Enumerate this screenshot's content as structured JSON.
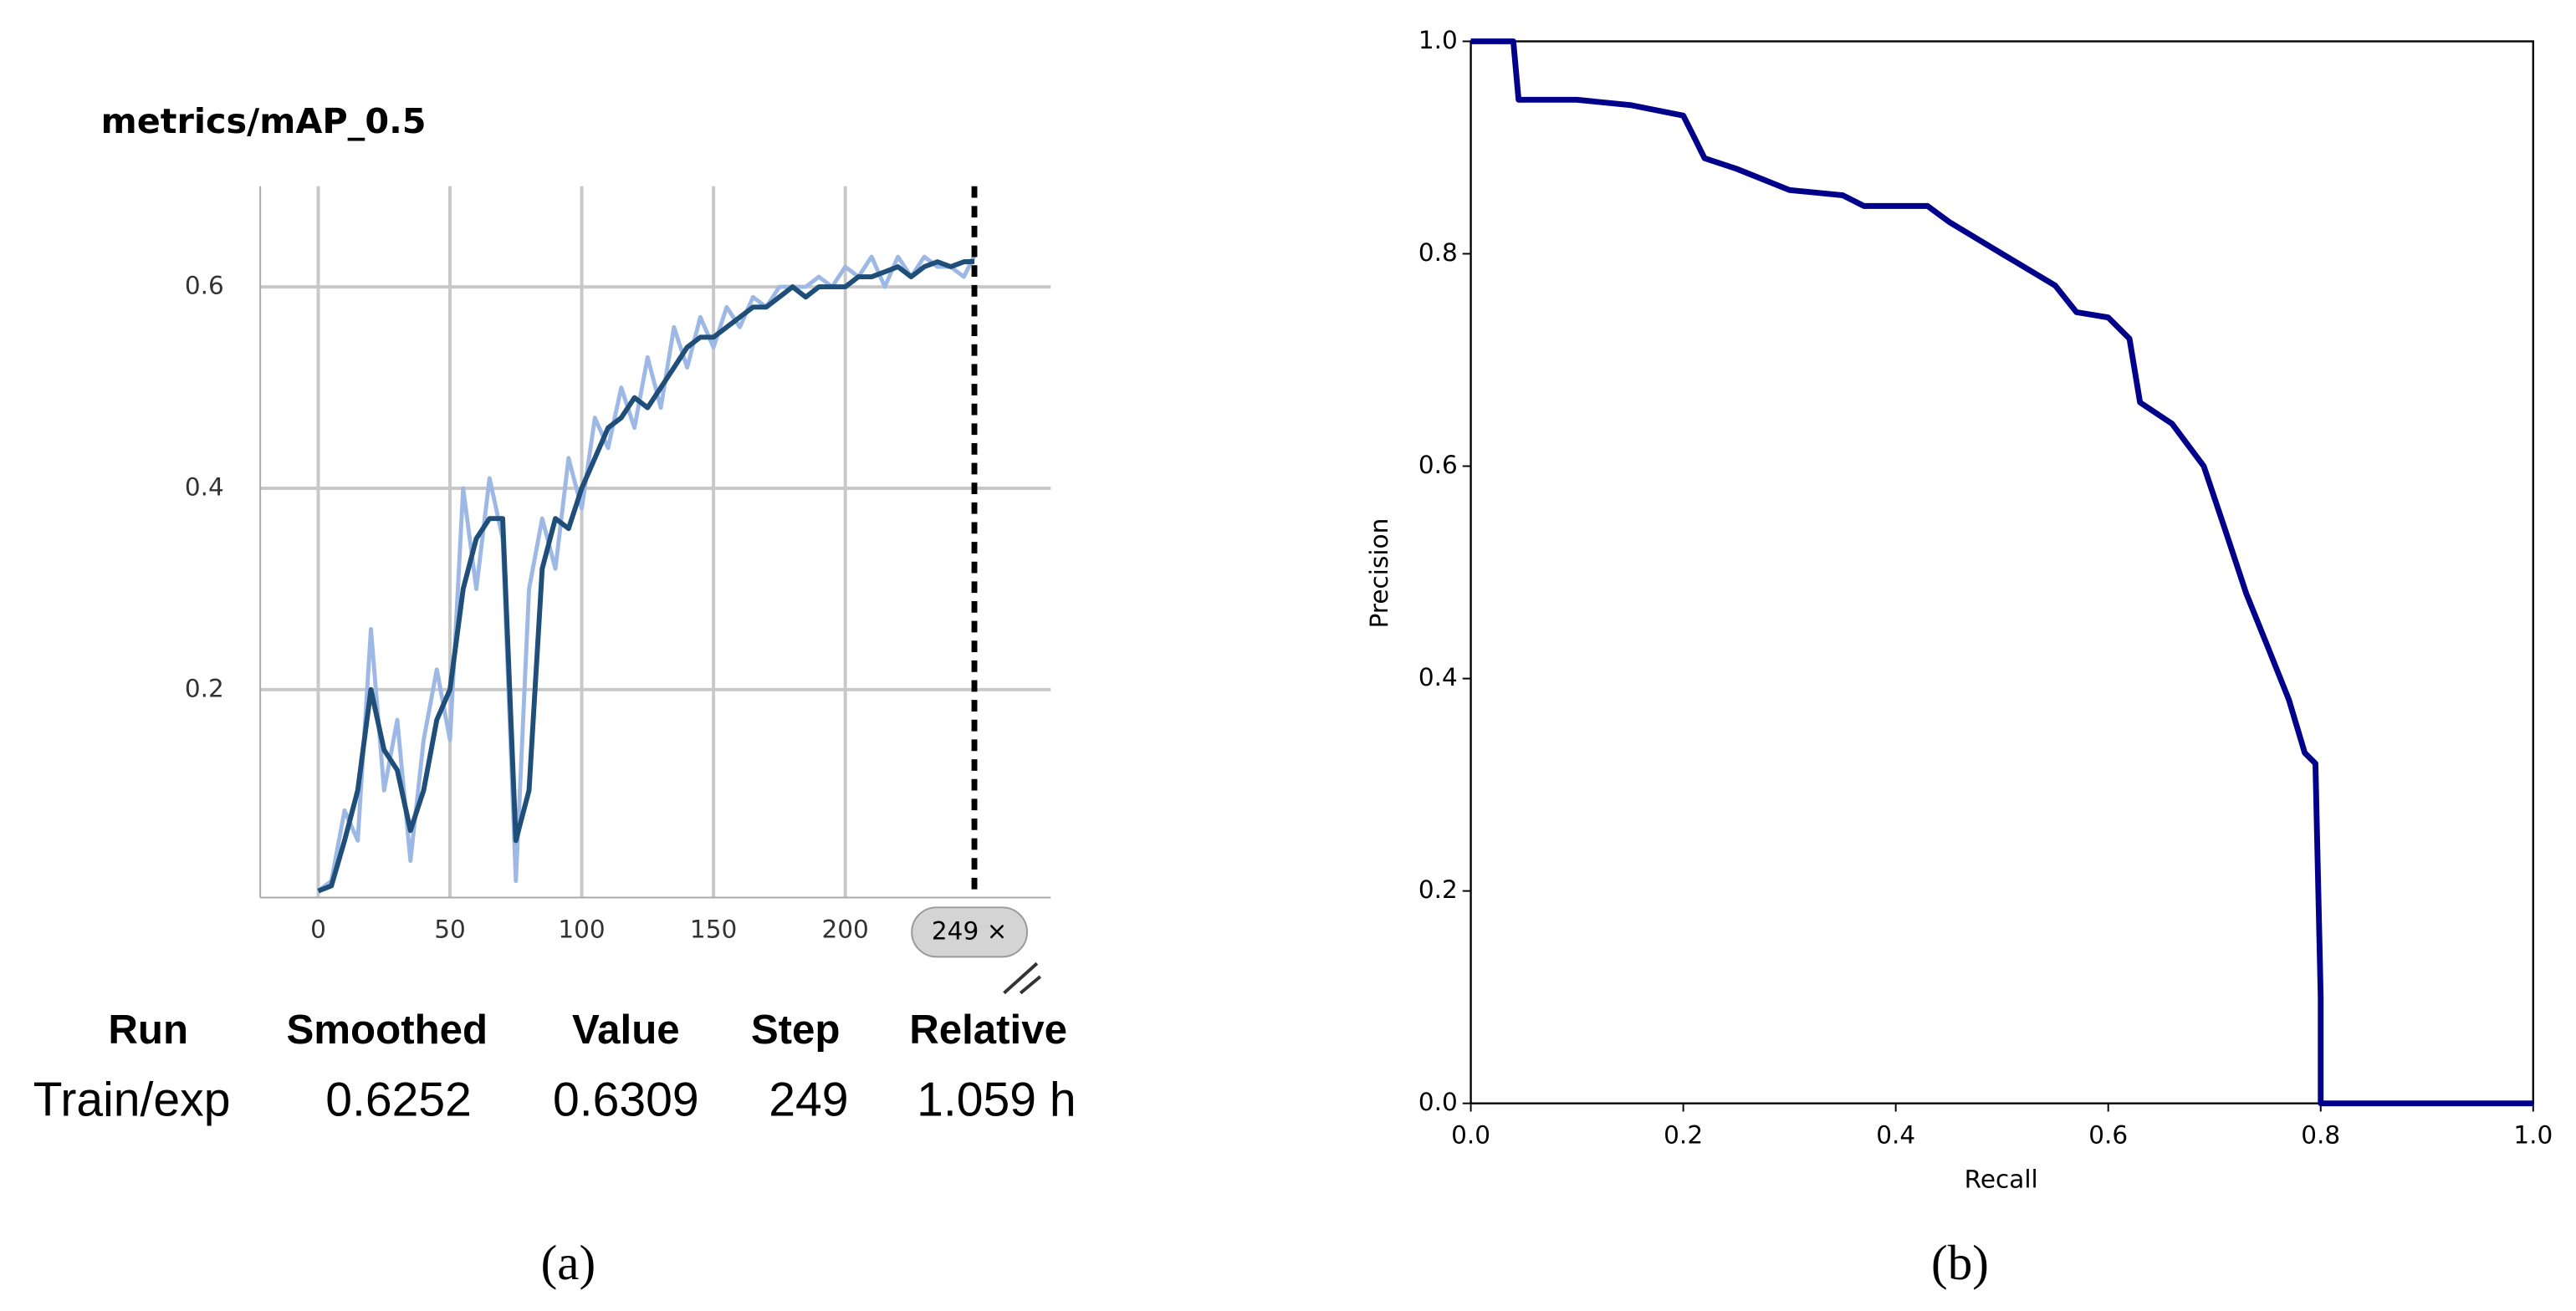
{
  "chart_data": [
    {
      "type": "line",
      "title": "metrics/mAP_0.5",
      "caption": "(a)",
      "x": [
        0,
        5,
        10,
        15,
        20,
        25,
        30,
        35,
        40,
        45,
        50,
        55,
        60,
        65,
        70,
        75,
        80,
        85,
        90,
        95,
        100,
        105,
        110,
        115,
        120,
        125,
        130,
        135,
        140,
        145,
        150,
        155,
        160,
        165,
        170,
        175,
        180,
        185,
        190,
        195,
        200,
        205,
        210,
        215,
        220,
        225,
        230,
        235,
        240,
        245,
        249
      ],
      "series": [
        {
          "color": "#9db8e4",
          "values": [
            0,
            0.01,
            0.08,
            0.05,
            0.26,
            0.1,
            0.17,
            0.03,
            0.15,
            0.22,
            0.15,
            0.4,
            0.3,
            0.41,
            0.35,
            0.01,
            0.3,
            0.37,
            0.32,
            0.43,
            0.38,
            0.47,
            0.44,
            0.5,
            0.46,
            0.53,
            0.48,
            0.56,
            0.52,
            0.57,
            0.54,
            0.58,
            0.56,
            0.59,
            0.58,
            0.6,
            0.6,
            0.6,
            0.61,
            0.6,
            0.62,
            0.61,
            0.63,
            0.6,
            0.63,
            0.61,
            0.63,
            0.62,
            0.62,
            0.61,
            0.6309
          ]
        },
        {
          "color": "#1f4e79",
          "values": [
            0,
            0.005,
            0.05,
            0.1,
            0.2,
            0.14,
            0.12,
            0.06,
            0.1,
            0.17,
            0.2,
            0.3,
            0.35,
            0.37,
            0.37,
            0.05,
            0.1,
            0.32,
            0.37,
            0.36,
            0.4,
            0.43,
            0.46,
            0.47,
            0.49,
            0.48,
            0.5,
            0.52,
            0.54,
            0.55,
            0.55,
            0.56,
            0.57,
            0.58,
            0.58,
            0.59,
            0.6,
            0.59,
            0.6,
            0.6,
            0.6,
            0.61,
            0.61,
            0.615,
            0.62,
            0.61,
            0.62,
            0.625,
            0.62,
            0.625,
            0.6252
          ]
        }
      ],
      "xlim": [
        -22,
        278
      ],
      "ylim": [
        0,
        0.7
      ],
      "xticks": [
        0,
        50,
        100,
        150,
        200
      ],
      "yticks": [
        0.2,
        0.4,
        0.6
      ],
      "grid": true,
      "cursor": {
        "value": 249,
        "label": "249 ×"
      },
      "table": {
        "header": [
          "Run",
          "Smoothed",
          "Value",
          "Step",
          "Relative"
        ],
        "row": [
          "Train/exp",
          "0.6252",
          "0.6309",
          "249",
          "1.059 h"
        ]
      }
    },
    {
      "type": "line",
      "caption": "(b)",
      "xlabel": "Recall",
      "ylabel": "Precision",
      "x": [
        0,
        0.04,
        0.045,
        0.1,
        0.15,
        0.2,
        0.21,
        0.22,
        0.25,
        0.3,
        0.35,
        0.37,
        0.43,
        0.45,
        0.5,
        0.55,
        0.57,
        0.6,
        0.62,
        0.63,
        0.66,
        0.69,
        0.71,
        0.73,
        0.75,
        0.77,
        0.785,
        0.795,
        0.8,
        0.8,
        1.0
      ],
      "series": [
        {
          "color": "#00008b",
          "values": [
            1,
            1,
            0.945,
            0.945,
            0.94,
            0.93,
            0.91,
            0.89,
            0.88,
            0.86,
            0.855,
            0.845,
            0.845,
            0.83,
            0.8,
            0.77,
            0.745,
            0.74,
            0.72,
            0.66,
            0.64,
            0.6,
            0.54,
            0.48,
            0.43,
            0.38,
            0.33,
            0.32,
            0.1,
            0,
            0
          ]
        }
      ],
      "xlim": [
        0,
        1
      ],
      "ylim": [
        0,
        1
      ],
      "xticks": [
        {
          "value": 0,
          "label": "0.0"
        },
        0.2,
        0.4,
        0.6,
        0.8,
        {
          "value": 1,
          "label": "1.0"
        }
      ],
      "yticks": [
        {
          "value": 0,
          "label": "0.0"
        },
        0.2,
        0.4,
        0.6,
        0.8,
        {
          "value": 1,
          "label": "1.0"
        }
      ]
    }
  ]
}
